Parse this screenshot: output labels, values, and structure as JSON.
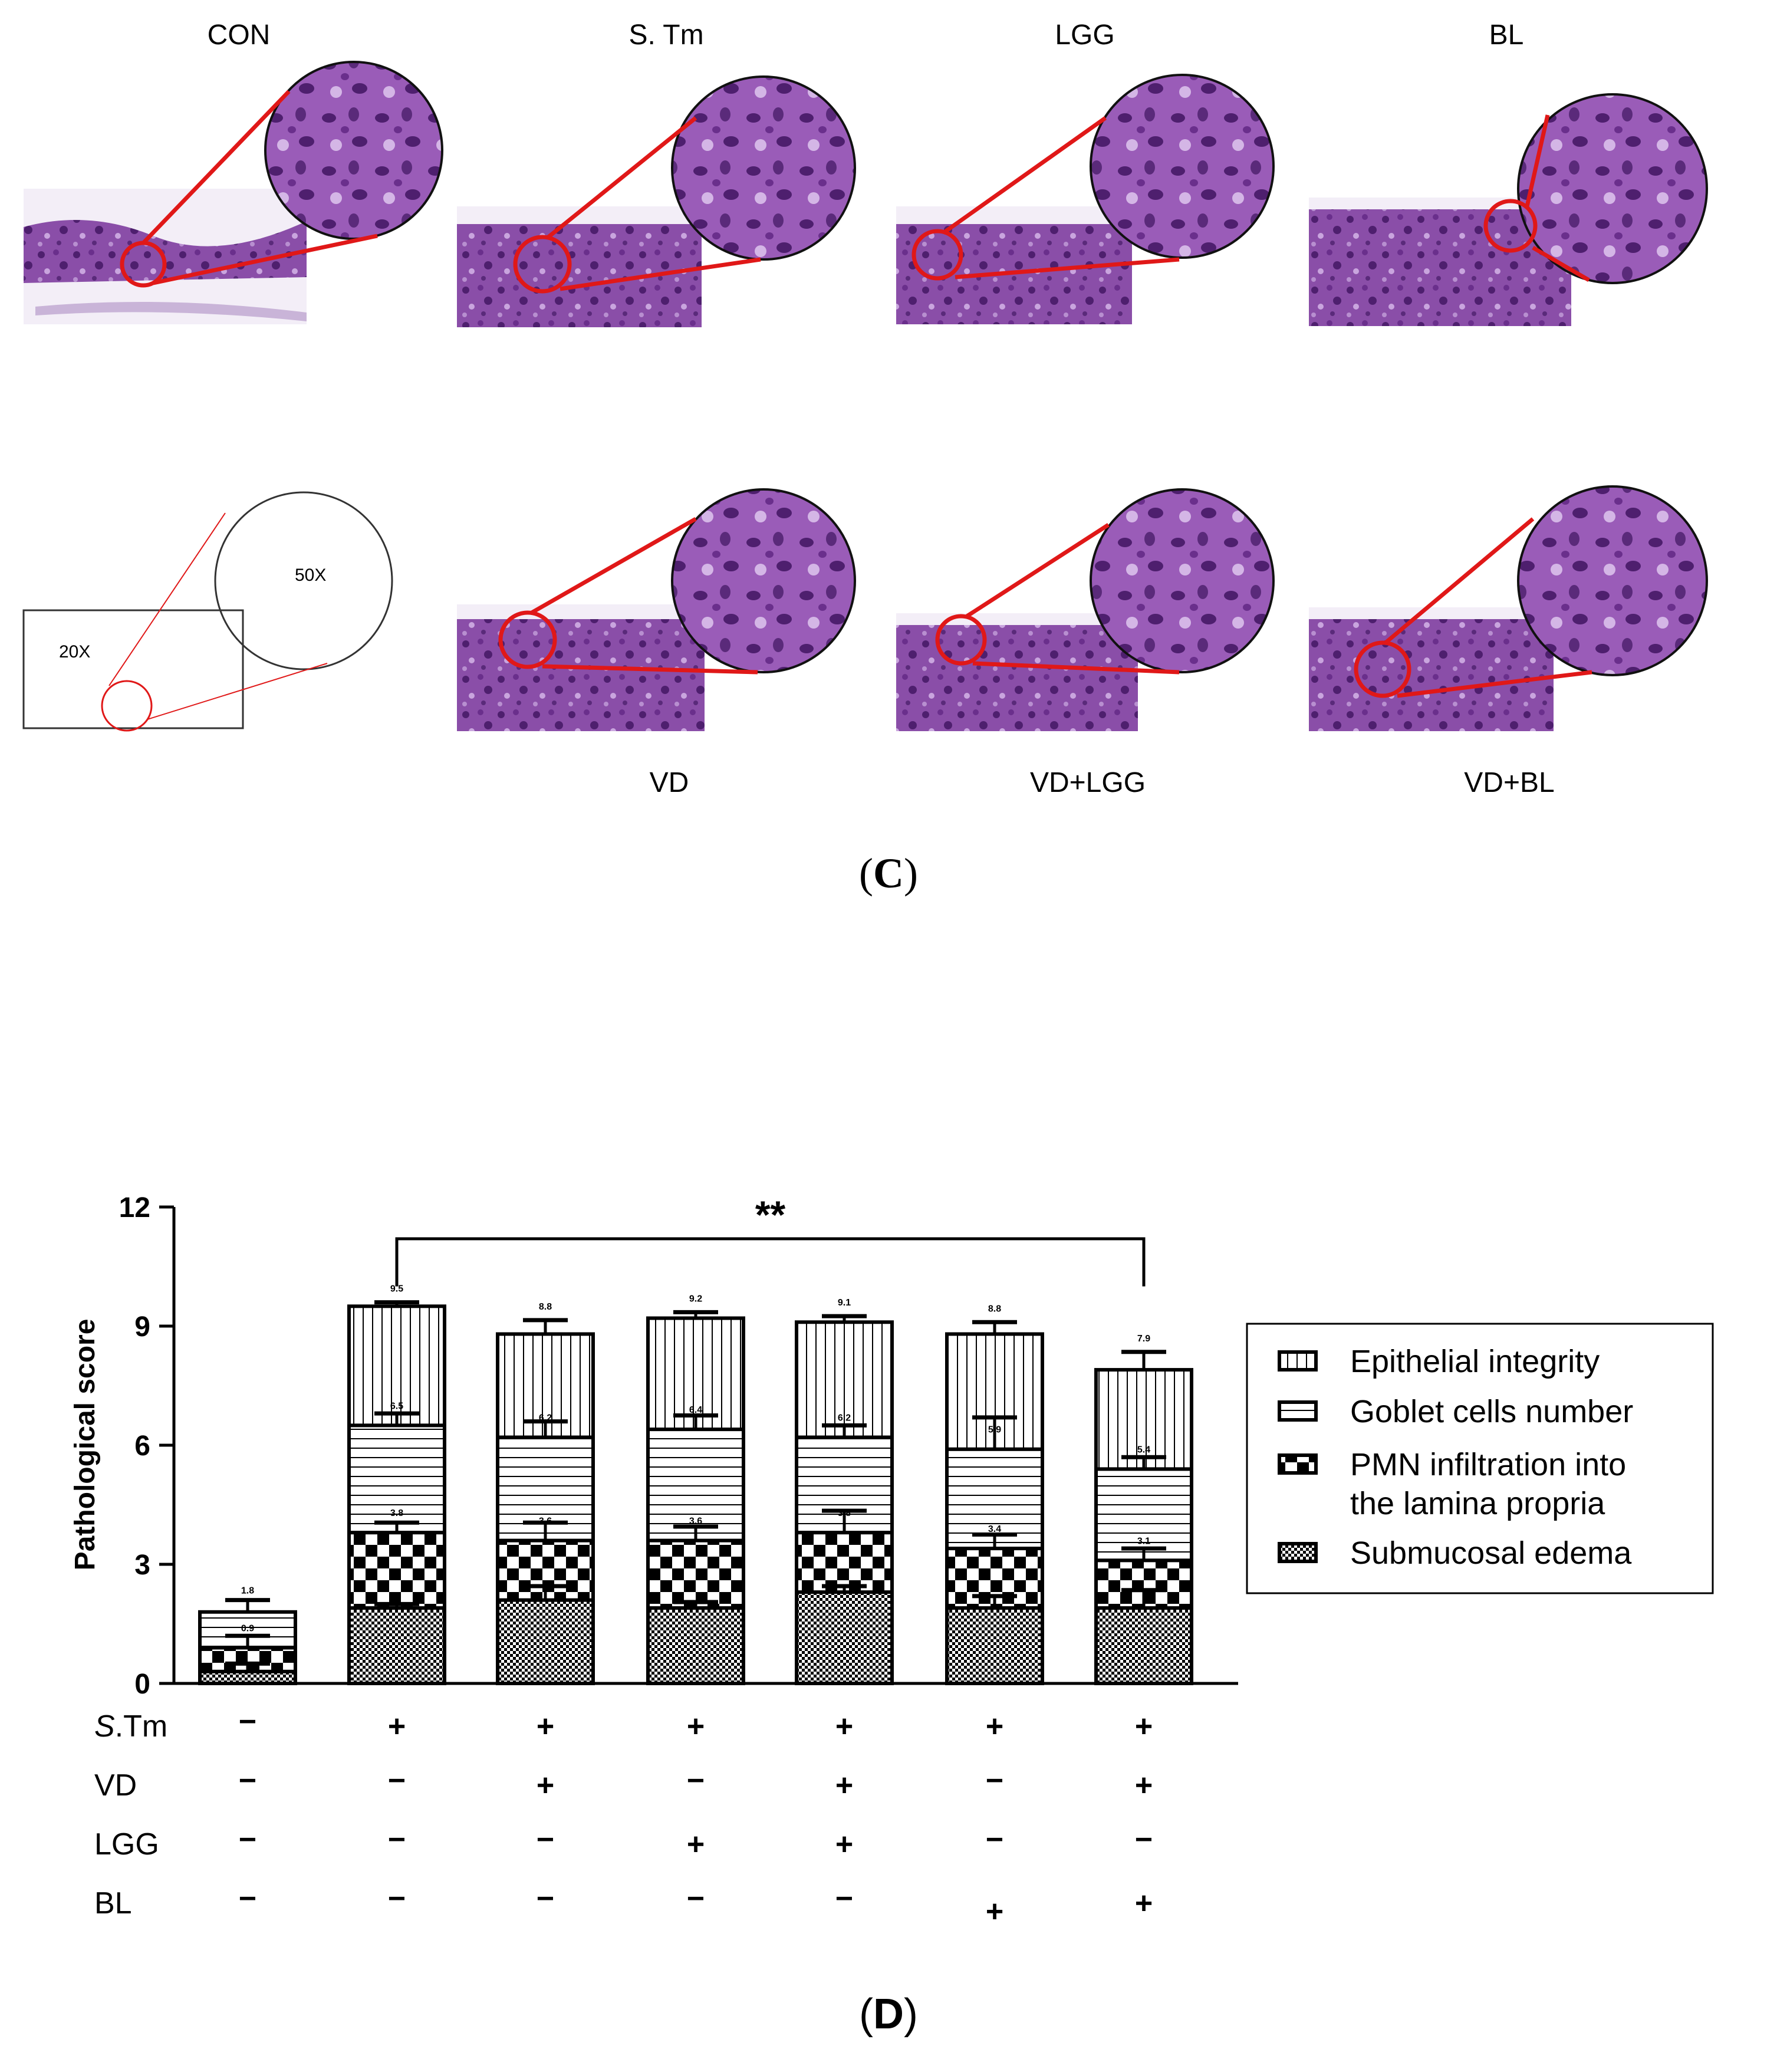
{
  "panel_c": {
    "label_open": "(",
    "label_letter": "C",
    "label_close": ")",
    "top_titles": [
      "CON",
      "S. Tm",
      "LGG",
      "BL"
    ],
    "bottom_titles": [
      "VD",
      "VD+LGG",
      "VD+BL"
    ],
    "schematic": {
      "low_mag": "20X",
      "high_mag": "50X"
    },
    "colors": {
      "tissue_dark": "#5a2a7a",
      "tissue_light": "#b88fd0",
      "callout": "#e01818"
    }
  },
  "panel_d": {
    "label_open": "(",
    "label_letter": "D",
    "label_close": ")"
  },
  "chart_data": {
    "type": "bar",
    "stacked": true,
    "ylabel": "Pathological score",
    "ylim": [
      0,
      12
    ],
    "yticks": [
      "0",
      "3",
      "6",
      "9",
      "12"
    ],
    "significance": "**",
    "categories": [
      "CON",
      "S.Tm",
      "VD",
      "LGG",
      "VD+LGG",
      "BL",
      "VD+BL"
    ],
    "series": [
      {
        "name": "Submucosal edema",
        "values": [
          0.3,
          1.9,
          2.1,
          1.9,
          2.3,
          1.9,
          1.9
        ]
      },
      {
        "name": "PMN infiltration into the lamina propria",
        "values": [
          0.6,
          1.9,
          1.5,
          1.7,
          1.5,
          1.5,
          1.2
        ]
      },
      {
        "name": "Goblet cells number",
        "values": [
          0.9,
          2.7,
          2.6,
          2.8,
          2.4,
          2.5,
          2.3
        ]
      },
      {
        "name": "Epithelial integrity",
        "values": [
          0.0,
          3.0,
          2.6,
          2.8,
          2.9,
          2.9,
          2.5
        ]
      }
    ],
    "bar_totals": [
      "1.8",
      "9.5",
      "8.8",
      "9.2",
      "9.1",
      "8.8",
      "7.9"
    ],
    "mid_labels_1": [
      "0.9",
      "3.8",
      "3.6",
      "3.6",
      "3.8",
      "3.4",
      "3.1"
    ],
    "mid_labels_2": [
      "",
      "6.5",
      "6.2",
      "6.4",
      "6.2",
      "5.9",
      "5.4"
    ],
    "errors": [
      [
        0.2,
        0.1,
        0.35,
        0.15,
        0.15,
        0.3,
        0.45
      ],
      [
        0.3,
        0.25,
        0.45,
        0.35,
        0.55,
        0.35,
        0.3
      ],
      [
        0.3,
        0.3,
        0.4,
        0.35,
        0.3,
        0.8,
        0.3
      ],
      [
        0.2,
        0.1,
        0.35,
        0.15,
        0.15,
        0.3,
        0.45
      ]
    ],
    "legend": [
      {
        "name": "Epithelial integrity",
        "pattern": "vlines"
      },
      {
        "name": "Goblet cells number",
        "pattern": "hlines"
      },
      {
        "name": "PMN infiltration into",
        "name2": "the lamina propria",
        "pattern": "checker"
      },
      {
        "name": "Submucosal edema",
        "pattern": "fine"
      }
    ],
    "treatment_table": {
      "rows": [
        {
          "label_italic": "S",
          "label_rest": ".Tm",
          "signs": [
            "−",
            "+",
            "+",
            "+",
            "+",
            "+",
            "+"
          ]
        },
        {
          "label_italic": "",
          "label_rest": "VD",
          "signs": [
            "−",
            "−",
            "+",
            "−",
            "+",
            "−",
            "+"
          ]
        },
        {
          "label_italic": "",
          "label_rest": "LGG",
          "signs": [
            "−",
            "−",
            "−",
            "+",
            "+",
            "−",
            "−"
          ]
        },
        {
          "label_italic": "",
          "label_rest": "BL",
          "signs": [
            "−",
            "−",
            "−",
            "−",
            "−",
            "+",
            "+"
          ]
        }
      ]
    }
  }
}
